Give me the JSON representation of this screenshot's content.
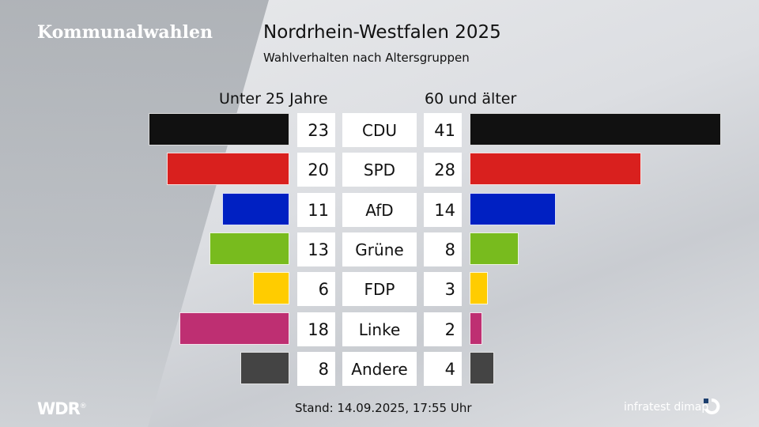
{
  "header": {
    "brand": "Kommunalwahlen",
    "title": "Nordrhein-Westfalen 2025",
    "subtitle": "Wahlverhalten nach Altersgruppen"
  },
  "columns": {
    "left": "Unter 25 Jahre",
    "right": "60 und älter"
  },
  "footer": {
    "logo": "WDR",
    "logo_mark": "®",
    "stand": "Stand: 14.09.2025, 17:55 Uhr",
    "source": "infratest dimap"
  },
  "chart_data": {
    "type": "bar",
    "title": "Nordrhein-Westfalen 2025",
    "subtitle": "Wahlverhalten nach Altersgruppen",
    "orientation": "horizontal-butterfly",
    "categories": [
      "CDU",
      "SPD",
      "AfD",
      "Grüne",
      "FDP",
      "Linke",
      "Andere"
    ],
    "series": [
      {
        "name": "Unter 25 Jahre",
        "values": [
          23,
          20,
          11,
          13,
          6,
          18,
          8
        ]
      },
      {
        "name": "60 und älter",
        "values": [
          41,
          28,
          14,
          8,
          3,
          2,
          4
        ]
      }
    ],
    "colors": [
      "#111111",
      "#d9201e",
      "#0020c2",
      "#78bb1e",
      "#ffcc00",
      "#be2f72",
      "#444444"
    ],
    "unit": "%",
    "grid": false
  },
  "rows": [
    {
      "party": "CDU",
      "left": "23",
      "right": "41",
      "color": "#111111"
    },
    {
      "party": "SPD",
      "left": "20",
      "right": "28",
      "color": "#d9201e"
    },
    {
      "party": "AfD",
      "left": "11",
      "right": "14",
      "color": "#0020c2"
    },
    {
      "party": "Grüne",
      "left": "13",
      "right": "8",
      "color": "#78bb1e"
    },
    {
      "party": "FDP",
      "left": "6",
      "right": "3",
      "color": "#ffcc00"
    },
    {
      "party": "Linke",
      "left": "18",
      "right": "2",
      "color": "#be2f72"
    },
    {
      "party": "Andere",
      "left": "8",
      "right": "4",
      "color": "#444444"
    }
  ]
}
